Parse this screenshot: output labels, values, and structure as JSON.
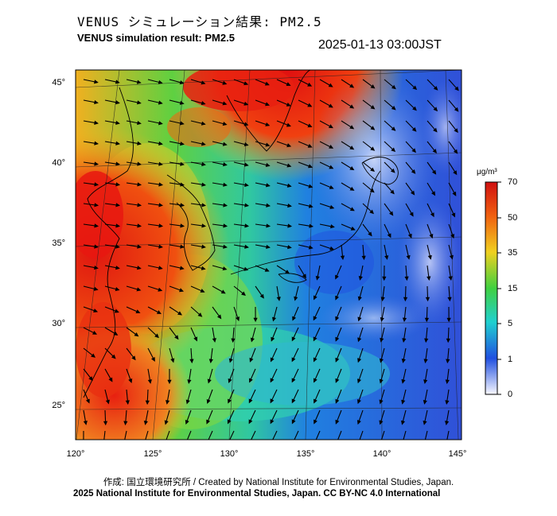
{
  "header": {
    "title_ja": "VENUS シミュレーション結果: PM2.5",
    "title_en": "VENUS simulation result: PM2.5",
    "timestamp": "2025-01-13 03:00JST"
  },
  "map": {
    "lat_labels": [
      "45°",
      "40°",
      "35°",
      "30°",
      "25°"
    ],
    "lon_labels": [
      "120°",
      "125°",
      "130°",
      "135°",
      "140°",
      "145°"
    ],
    "region": "East Asia / Japan",
    "overlay": "wind vectors"
  },
  "colorbar": {
    "unit": "μg/m³",
    "ticks": [
      "70",
      "50",
      "35",
      "15",
      "5",
      "1",
      "0"
    ],
    "colors": [
      "#e01010",
      "#f06010",
      "#f0c020",
      "#40d040",
      "#20d0d0",
      "#2060e0",
      "#e8e8ff"
    ]
  },
  "footer": {
    "credit_ja_en": "作成: 国立環境研究所 / Created by National Institute for Environmental Studies, Japan.",
    "copyright": "2025 National Institute for Environmental Studies, Japan. CC BY-NC 4.0 International"
  }
}
